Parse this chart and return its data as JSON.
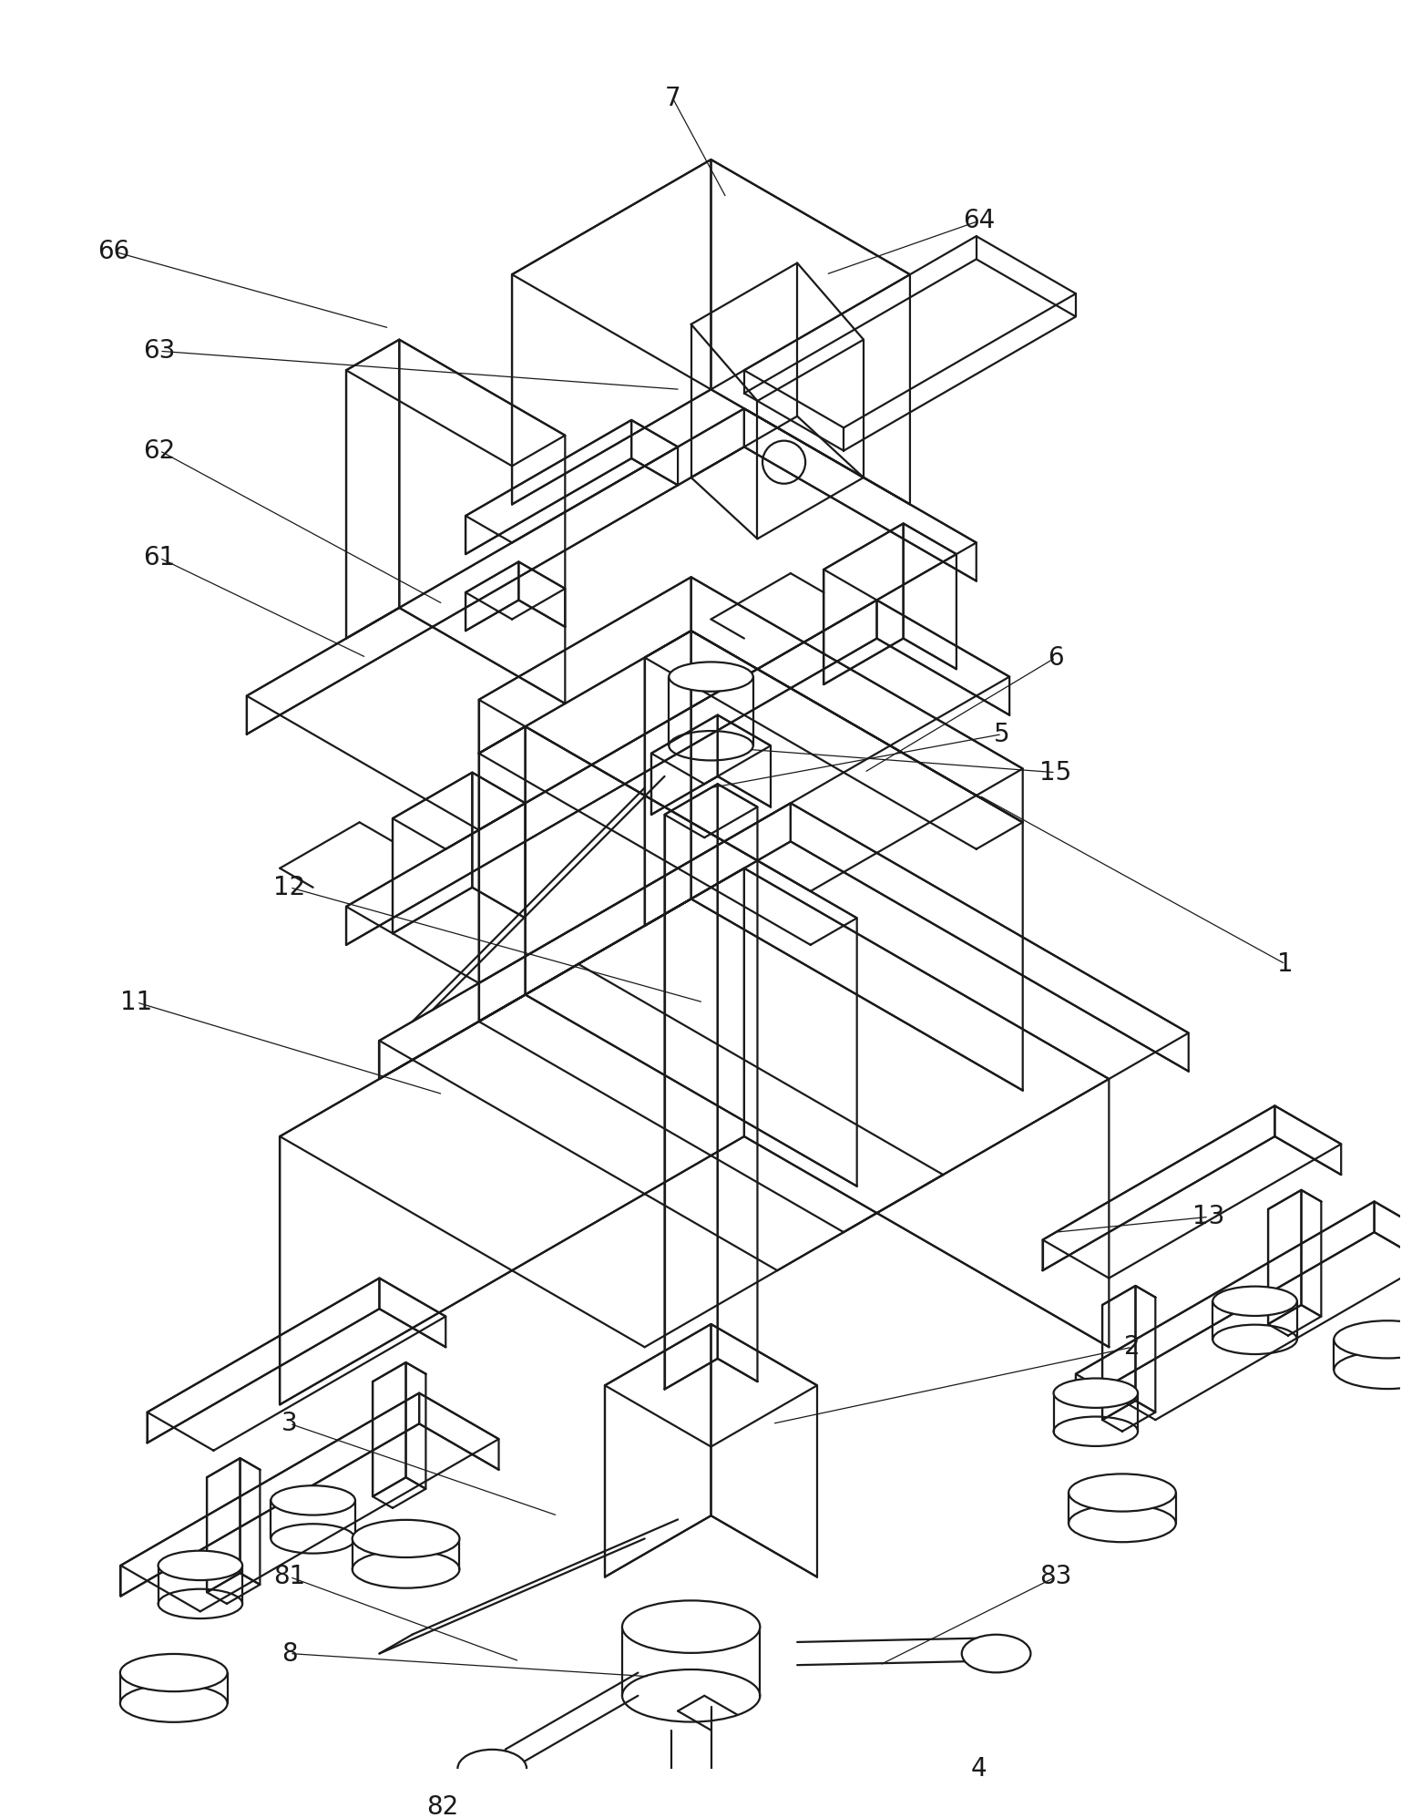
{
  "bg_color": "#ffffff",
  "lc": "#1a1a1a",
  "lw": 1.6,
  "lw_thin": 0.9,
  "fs": 20,
  "figw": 15.61,
  "figh": 19.95,
  "dpi": 100
}
